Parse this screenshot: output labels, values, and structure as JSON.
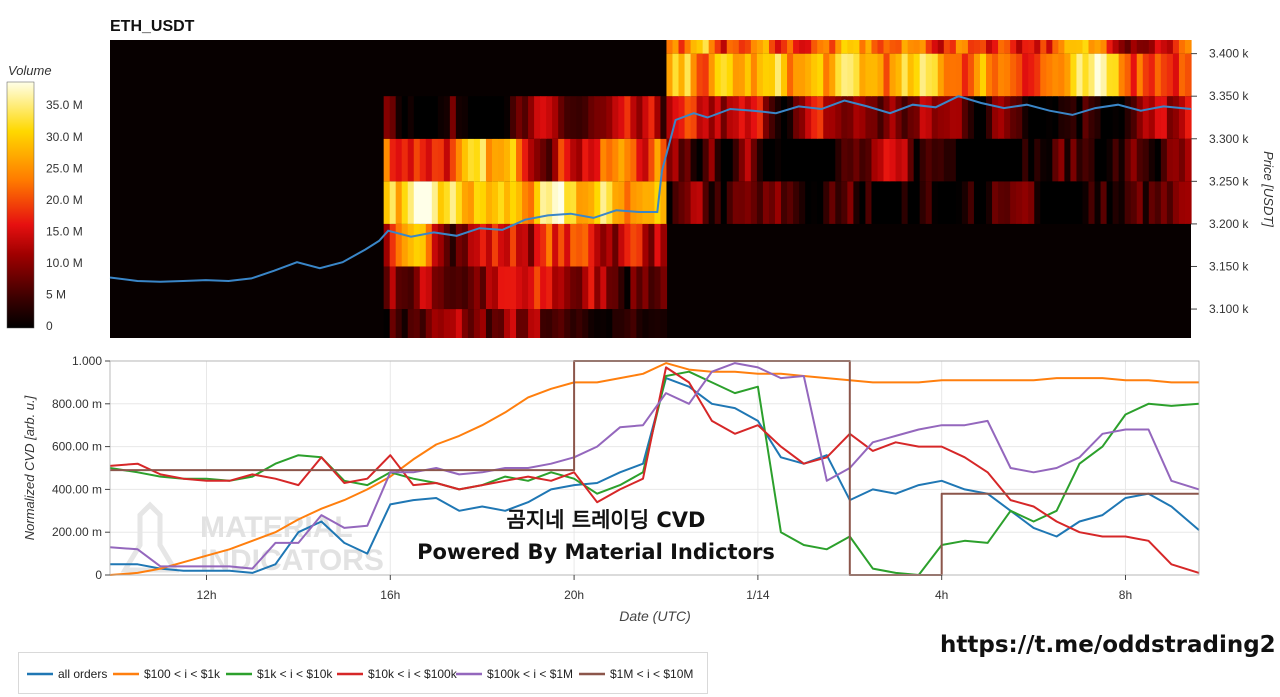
{
  "watermark_text": "MATERIAL INDICATORS",
  "overlay_line1": "곰지네 트레이딩 CVD",
  "overlay_line2": "Powered By Material Indictors",
  "url_text": "https://t.me/oddstrading2",
  "colors": {
    "all_orders": "#1f77b4",
    "s100_1k": "#ff7f0e",
    "s1k_10k": "#2ca02c",
    "s10k_100k": "#d62728",
    "s100k_1m": "#9467bd",
    "s1m_10m": "#8c564b"
  },
  "chart_data": [
    {
      "type": "heatmap",
      "title": "ETH_USDT",
      "ylabel": "Price [USDT]",
      "colorbar_title": "Volume",
      "colorbar_ticks": [
        "0",
        "5 M",
        "10.0 M",
        "15.0 M",
        "20.0 M",
        "25.0 M",
        "30.0 M",
        "35.0 M"
      ],
      "colorbar_values": [
        0,
        5,
        10,
        15,
        20,
        25,
        30,
        35
      ],
      "colorbar_range_millions": [
        0,
        39
      ],
      "y_ticks": [
        "3.100 k",
        "3.150 k",
        "3.200 k",
        "3.250 k",
        "3.300 k",
        "3.350 k",
        "3.400 k"
      ],
      "y_tick_values": [
        3100,
        3150,
        3200,
        3250,
        3300,
        3350,
        3400
      ],
      "ylim": [
        3066,
        3416
      ],
      "x_range_hours": [
        9.9,
        33.6
      ],
      "price_bins": [
        3075,
        3125,
        3175,
        3225,
        3275,
        3325,
        3375,
        3425
      ],
      "price_line": {
        "name": "price",
        "x_hours": [
          9.9,
          10.5,
          11.0,
          11.5,
          12.0,
          12.5,
          13.0,
          13.5,
          14.0,
          14.5,
          15.0,
          15.5,
          15.8,
          16.0,
          16.5,
          17.0,
          17.5,
          18.0,
          18.5,
          19.0,
          19.5,
          20.0,
          20.5,
          21.0,
          21.5,
          21.9,
          22.0,
          22.3,
          22.7,
          23.0,
          23.5,
          24.0,
          24.5,
          25.0,
          25.5,
          26.0,
          26.5,
          27.0,
          27.5,
          28.0,
          28.5,
          29.0,
          29.5,
          30.0,
          30.5,
          31.0,
          31.5,
          32.0,
          32.5,
          33.0,
          33.6
        ],
        "y": [
          3137,
          3133,
          3132,
          3133,
          3134,
          3133,
          3136,
          3145,
          3155,
          3148,
          3155,
          3170,
          3180,
          3192,
          3185,
          3190,
          3186,
          3195,
          3193,
          3205,
          3210,
          3212,
          3207,
          3216,
          3214,
          3214,
          3262,
          3322,
          3330,
          3325,
          3335,
          3333,
          3330,
          3338,
          3335,
          3345,
          3338,
          3330,
          3340,
          3337,
          3350,
          3342,
          3336,
          3340,
          3333,
          3328,
          3336,
          3340,
          3333,
          3338,
          3335
        ]
      }
    },
    {
      "type": "line",
      "xlabel": "Date (UTC)",
      "ylabel": "Normalized CVD [arb. u.]",
      "x_ticks": [
        "12h",
        "16h",
        "20h",
        "1/14",
        "4h",
        "8h"
      ],
      "x_tick_hours": [
        12,
        16,
        20,
        24,
        28,
        32
      ],
      "xlim_hours": [
        9.9,
        33.6
      ],
      "y_ticks": [
        "0",
        "200.00 m",
        "400.00 m",
        "600.00 m",
        "800.00 m",
        "1.000"
      ],
      "y_tick_values": [
        0,
        0.2,
        0.4,
        0.6,
        0.8,
        1.0
      ],
      "ylim": [
        0,
        1.0
      ],
      "grid": true,
      "legend_position": "bottom",
      "x": [
        9.9,
        10.5,
        11.0,
        11.5,
        12.0,
        12.5,
        13.0,
        13.5,
        14.0,
        14.5,
        15.0,
        15.5,
        16.0,
        16.5,
        17.0,
        17.5,
        18.0,
        18.5,
        19.0,
        19.5,
        20.0,
        20.5,
        21.0,
        21.5,
        22.0,
        22.5,
        23.0,
        23.5,
        24.0,
        24.5,
        25.0,
        25.5,
        26.0,
        26.5,
        27.0,
        27.5,
        28.0,
        28.5,
        29.0,
        29.5,
        30.0,
        30.5,
        31.0,
        31.5,
        32.0,
        32.5,
        33.0,
        33.6
      ],
      "series": [
        {
          "name": "all orders",
          "color_key": "all_orders",
          "values": [
            0.05,
            0.05,
            0.03,
            0.02,
            0.02,
            0.02,
            0.01,
            0.05,
            0.2,
            0.25,
            0.15,
            0.1,
            0.33,
            0.35,
            0.36,
            0.3,
            0.32,
            0.3,
            0.34,
            0.4,
            0.42,
            0.43,
            0.48,
            0.52,
            0.92,
            0.88,
            0.8,
            0.78,
            0.72,
            0.55,
            0.52,
            0.56,
            0.35,
            0.4,
            0.38,
            0.42,
            0.44,
            0.4,
            0.38,
            0.3,
            0.22,
            0.18,
            0.25,
            0.28,
            0.36,
            0.38,
            0.32,
            0.21
          ]
        },
        {
          "name": "$100 < i < $1k",
          "color_key": "s100_1k",
          "values": [
            0.0,
            0.01,
            0.03,
            0.06,
            0.09,
            0.12,
            0.16,
            0.2,
            0.26,
            0.31,
            0.35,
            0.4,
            0.46,
            0.54,
            0.61,
            0.65,
            0.7,
            0.76,
            0.83,
            0.87,
            0.9,
            0.9,
            0.92,
            0.94,
            0.99,
            0.96,
            0.95,
            0.95,
            0.94,
            0.94,
            0.93,
            0.92,
            0.91,
            0.9,
            0.9,
            0.9,
            0.91,
            0.91,
            0.91,
            0.91,
            0.91,
            0.92,
            0.92,
            0.92,
            0.91,
            0.91,
            0.9,
            0.9
          ]
        },
        {
          "name": "$1k < i < $10k",
          "color_key": "s1k_10k",
          "values": [
            0.5,
            0.48,
            0.46,
            0.45,
            0.45,
            0.44,
            0.46,
            0.52,
            0.56,
            0.55,
            0.44,
            0.42,
            0.48,
            0.45,
            0.43,
            0.4,
            0.42,
            0.46,
            0.44,
            0.48,
            0.45,
            0.38,
            0.42,
            0.48,
            0.93,
            0.95,
            0.9,
            0.85,
            0.88,
            0.2,
            0.14,
            0.12,
            0.18,
            0.03,
            0.01,
            0.0,
            0.14,
            0.16,
            0.15,
            0.3,
            0.25,
            0.3,
            0.52,
            0.6,
            0.75,
            0.8,
            0.79,
            0.8
          ]
        },
        {
          "name": "$10k < i < $100k",
          "color_key": "s10k_100k",
          "values": [
            0.51,
            0.52,
            0.47,
            0.45,
            0.44,
            0.44,
            0.47,
            0.45,
            0.42,
            0.55,
            0.43,
            0.45,
            0.56,
            0.42,
            0.43,
            0.4,
            0.42,
            0.44,
            0.46,
            0.44,
            0.48,
            0.34,
            0.4,
            0.45,
            0.97,
            0.9,
            0.72,
            0.66,
            0.7,
            0.6,
            0.52,
            0.55,
            0.66,
            0.58,
            0.62,
            0.6,
            0.6,
            0.55,
            0.48,
            0.35,
            0.32,
            0.25,
            0.2,
            0.18,
            0.18,
            0.16,
            0.05,
            0.01
          ]
        },
        {
          "name": "$100k < i < $1M",
          "color_key": "s100k_1m",
          "values": [
            0.13,
            0.12,
            0.04,
            0.04,
            0.04,
            0.04,
            0.03,
            0.15,
            0.15,
            0.28,
            0.22,
            0.23,
            0.48,
            0.48,
            0.5,
            0.47,
            0.48,
            0.5,
            0.5,
            0.52,
            0.55,
            0.6,
            0.69,
            0.7,
            0.85,
            0.8,
            0.95,
            0.99,
            0.97,
            0.92,
            0.93,
            0.44,
            0.5,
            0.62,
            0.65,
            0.68,
            0.7,
            0.7,
            0.72,
            0.5,
            0.48,
            0.5,
            0.55,
            0.66,
            0.68,
            0.68,
            0.44,
            0.4
          ]
        },
        {
          "name": "$1M < i < $10M",
          "color_key": "s1m_10m",
          "values": [
            0.49,
            0.49,
            0.49,
            0.49,
            0.49,
            0.49,
            0.49,
            0.49,
            0.49,
            0.49,
            0.49,
            0.49,
            0.49,
            0.49,
            0.49,
            0.49,
            0.49,
            0.49,
            0.49,
            0.49,
            1.0,
            1.0,
            1.0,
            1.0,
            1.0,
            1.0,
            1.0,
            1.0,
            1.0,
            1.0,
            1.0,
            1.0,
            0.0,
            0.0,
            0.0,
            0.0,
            0.38,
            0.38,
            0.38,
            0.38,
            0.38,
            0.38,
            0.38,
            0.38,
            0.38,
            0.38,
            0.38,
            0.38
          ]
        }
      ]
    }
  ]
}
